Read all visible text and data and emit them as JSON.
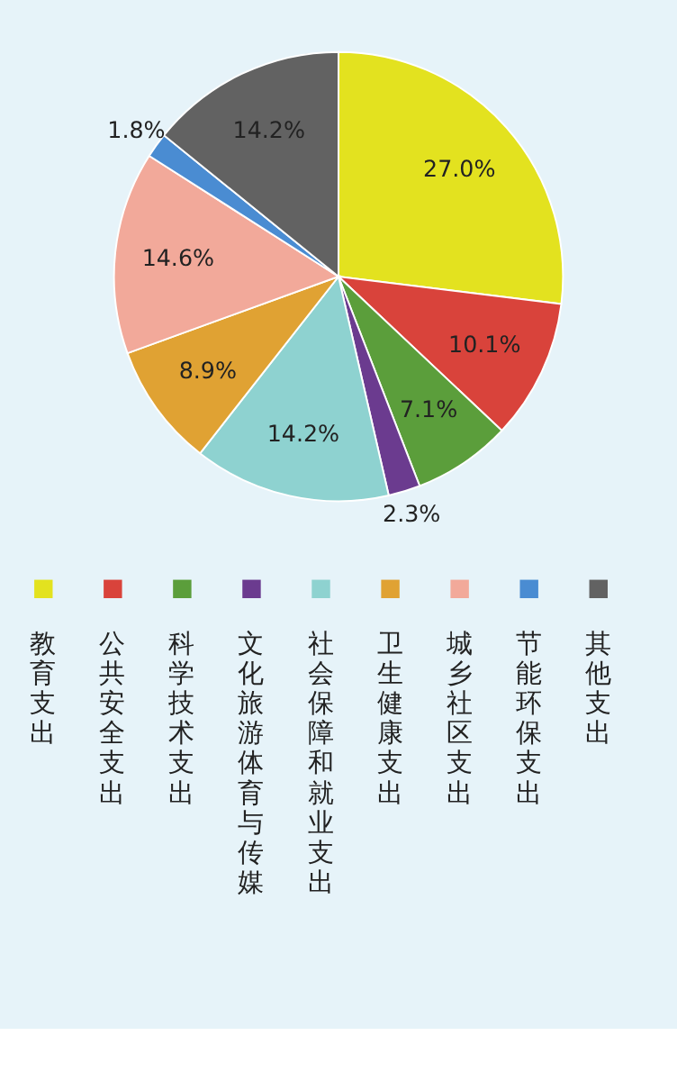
{
  "chart_data": {
    "type": "pie",
    "categories": [
      "教育支出",
      "公共安全支出",
      "科学技术支出",
      "文化旅游体育与传媒",
      "社会保障和就业支出",
      "卫生健康支出",
      "城乡社区支出",
      "节能环保支出",
      "其他支出"
    ],
    "values": [
      27.0,
      10.1,
      7.1,
      2.3,
      14.2,
      8.9,
      14.6,
      1.8,
      14.2
    ],
    "value_labels": [
      "27.0%",
      "10.1%",
      "7.1%",
      "2.3%",
      "14.2%",
      "8.9%",
      "14.6%",
      "1.8%",
      "14.2%"
    ],
    "colors": [
      "#e3e21f",
      "#d9433b",
      "#5b9e3b",
      "#6b3b8f",
      "#8ed2d0",
      "#e0a233",
      "#f2a99a",
      "#4a8cd2",
      "#626262"
    ],
    "legend": "bottom"
  }
}
